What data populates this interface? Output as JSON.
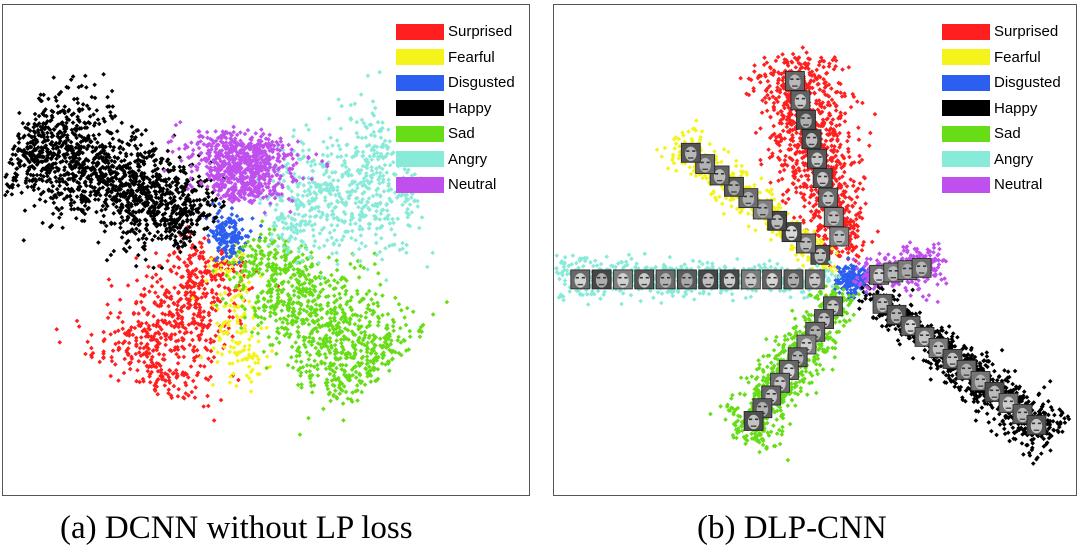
{
  "chart_data": [
    {
      "type": "scatter",
      "panel": "a",
      "caption": "(a) DCNN without LP loss",
      "title": "",
      "xlabel": "",
      "ylabel": "",
      "axes_visible": false,
      "legend_position": "top-right",
      "xlim": [
        0,
        100
      ],
      "ylim": [
        0,
        100
      ],
      "center": [
        43,
        53
      ],
      "series": [
        {
          "name": "Surprised",
          "color": "#ff1f1f",
          "count": 650,
          "angle": 240,
          "length": 34,
          "spread": 6.5,
          "offset": 3
        },
        {
          "name": "Fearful",
          "color": "#f4f41a",
          "count": 160,
          "angle": 275,
          "length": 30,
          "spread": 3.5,
          "offset": 4
        },
        {
          "name": "Disgusted",
          "color": "#2c5ff0",
          "count": 160,
          "angle": 0,
          "length": 3,
          "spread": 2.2,
          "offset": 0
        },
        {
          "name": "Happy",
          "color": "#000000",
          "count": 1500,
          "angle": 153,
          "length": 44,
          "spread": 6.5,
          "offset": 5
        },
        {
          "name": "Sad",
          "color": "#66dd16",
          "count": 950,
          "angle": 315,
          "length": 40,
          "spread": 6.5,
          "offset": 4
        },
        {
          "name": "Angry",
          "color": "#88ead8",
          "count": 650,
          "angle": 22,
          "length": 36,
          "spread": 7.5,
          "offset": 8
        },
        {
          "name": "Neutral",
          "color": "#c050ee",
          "count": 750,
          "angle": 80,
          "length": 20,
          "spread": 5.5,
          "offset": 8
        }
      ]
    },
    {
      "type": "scatter",
      "panel": "b",
      "caption": "(b) DLP-CNN",
      "title": "",
      "xlabel": "",
      "ylabel": "",
      "axes_visible": false,
      "legend_position": "top-right",
      "xlim": [
        0,
        100
      ],
      "ylim": [
        0,
        100
      ],
      "center": [
        57,
        44
      ],
      "series": [
        {
          "name": "Surprised",
          "color": "#ff1f1f",
          "count": 1000,
          "angle": 105,
          "length": 46,
          "spread": 4.5,
          "offset": 5
        },
        {
          "name": "Fearful",
          "color": "#f4f41a",
          "count": 420,
          "angle": 140,
          "length": 44,
          "spread": 2.4,
          "offset": 4
        },
        {
          "name": "Disgusted",
          "color": "#2c5ff0",
          "count": 160,
          "angle": 0,
          "length": 3,
          "spread": 1.5,
          "offset": 0
        },
        {
          "name": "Happy",
          "color": "#000000",
          "count": 900,
          "angle": 320,
          "length": 50,
          "spread": 2.8,
          "offset": 4
        },
        {
          "name": "Sad",
          "color": "#66dd16",
          "count": 700,
          "angle": 237,
          "length": 38,
          "spread": 3.2,
          "offset": 3
        },
        {
          "name": "Angry",
          "color": "#88ead8",
          "count": 650,
          "angle": 180,
          "length": 56,
          "spread": 2.2,
          "offset": 3
        },
        {
          "name": "Neutral",
          "color": "#c050ee",
          "count": 300,
          "angle": 10,
          "length": 17,
          "spread": 2.5,
          "offset": 2
        }
      ],
      "face_thumbnails": [
        {
          "series": "Surprised",
          "count": 9
        },
        {
          "series": "Fearful",
          "count": 10
        },
        {
          "series": "Happy",
          "count": 12
        },
        {
          "series": "Sad",
          "count": 10
        },
        {
          "series": "Angry",
          "count": 12
        },
        {
          "series": "Neutral",
          "count": 4
        }
      ]
    }
  ]
}
